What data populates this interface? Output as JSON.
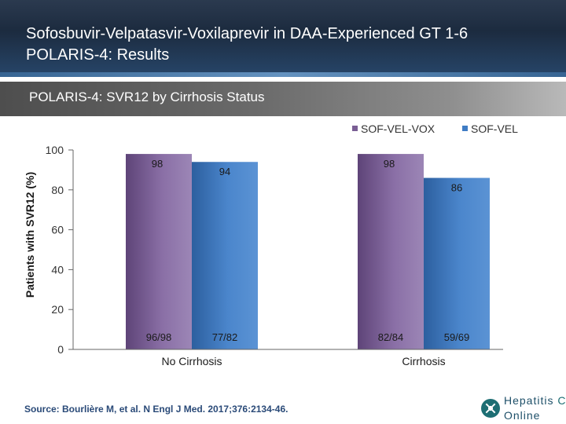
{
  "header": {
    "title_line1": "Sofosbuvir-Velpatasvir-Voxilaprevir in DAA-Experienced GT 1-6",
    "title_line2": "POLARIS-4: Results"
  },
  "subtitle": "POLARIS-4: SVR12 by Cirrhosis Status",
  "colors": {
    "sof_vel_vox": "#7a5e94",
    "sof_vel": "#3f7cc4"
  },
  "chart_data": {
    "type": "bar",
    "title": "POLARIS-4: SVR12 by Cirrhosis Status",
    "ylabel": "Patients with SVR12 (%)",
    "xlabel": "",
    "ylim": [
      0,
      100
    ],
    "yticks": [
      0,
      20,
      40,
      60,
      80,
      100
    ],
    "grid": false,
    "legend_position": "top-right",
    "categories": [
      "No Cirrhosis",
      "Cirrhosis"
    ],
    "series": [
      {
        "name": "SOF-VEL-VOX",
        "values": [
          98,
          98
        ],
        "counts": [
          "96/98",
          "82/84"
        ]
      },
      {
        "name": "SOF-VEL",
        "values": [
          94,
          86
        ],
        "counts": [
          "77/82",
          "59/69"
        ]
      }
    ]
  },
  "source": "Source: Bourlière M, et al. N Engl J Med. 2017;376:2134-46.",
  "logo": {
    "line1": "Hepatitis",
    "line1_accent": "C",
    "line2": "Online"
  }
}
